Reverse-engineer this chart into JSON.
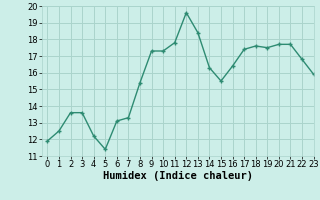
{
  "x": [
    0,
    1,
    2,
    3,
    4,
    5,
    6,
    7,
    8,
    9,
    10,
    11,
    12,
    13,
    14,
    15,
    16,
    17,
    18,
    19,
    20,
    21,
    22,
    23
  ],
  "y": [
    11.9,
    12.5,
    13.6,
    13.6,
    12.2,
    11.4,
    13.1,
    13.3,
    15.4,
    17.3,
    17.3,
    17.8,
    19.6,
    18.4,
    16.3,
    15.5,
    16.4,
    17.4,
    17.6,
    17.5,
    17.7,
    17.7,
    16.8,
    15.9
  ],
  "line_color": "#2e8b72",
  "marker": "+",
  "marker_size": 3.5,
  "marker_linewidth": 1.0,
  "background_color": "#cceee8",
  "grid_color": "#aad4cc",
  "xlabel": "Humidex (Indice chaleur)",
  "ylim": [
    11,
    20
  ],
  "xlim": [
    -0.5,
    23
  ],
  "yticks": [
    11,
    12,
    13,
    14,
    15,
    16,
    17,
    18,
    19,
    20
  ],
  "xticks": [
    0,
    1,
    2,
    3,
    4,
    5,
    6,
    7,
    8,
    9,
    10,
    11,
    12,
    13,
    14,
    15,
    16,
    17,
    18,
    19,
    20,
    21,
    22,
    23
  ],
  "tick_label_fontsize": 6,
  "xlabel_fontsize": 7.5,
  "linewidth": 1.0
}
